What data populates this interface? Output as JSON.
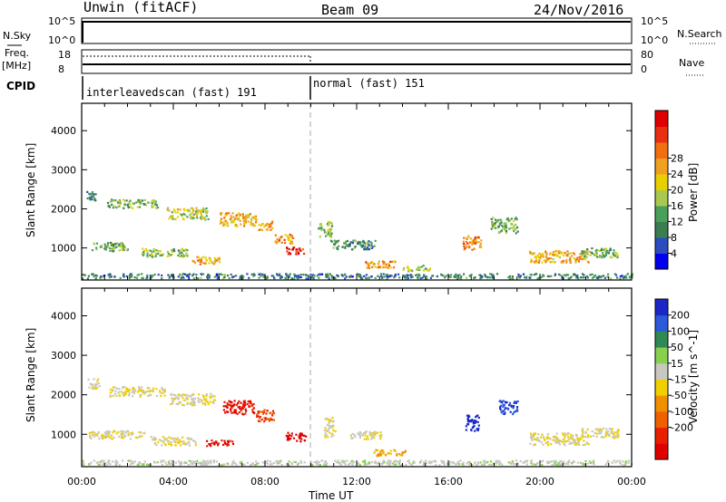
{
  "header": {
    "station": "Unwin (fitACF)",
    "beam": "Beam 09",
    "date": "24/Nov/2016"
  },
  "strip_labels": {
    "nsky": "N.Sky",
    "nsky_ticks": [
      "10^5",
      "10^0"
    ],
    "nsearch": "N.Search",
    "nsearch_ticks": [
      "10^5",
      "10^0"
    ],
    "freq": "Freq.",
    "freq_unit": "[MHz]",
    "freq_ticks": [
      "18",
      "8"
    ],
    "nave": "Nave",
    "nave_ticks": [
      "80",
      "0"
    ],
    "cpid": "CPID",
    "cpid_segments": [
      {
        "label": "interleavedscan (fast) 191",
        "start": "00:00",
        "end": "10:00"
      },
      {
        "label": "normal (fast) 151",
        "start": "10:00",
        "end": "24:00"
      }
    ]
  },
  "axes": {
    "xlabel": "Time UT",
    "xticks": [
      "00:00",
      "04:00",
      "08:00",
      "12:00",
      "16:00",
      "20:00",
      "00:00"
    ],
    "ylabel": "Slant Range [km]",
    "yticks": [
      "1000",
      "2000",
      "3000",
      "4000"
    ]
  },
  "power_scale": {
    "label": "Power [dB]",
    "ticks": [
      "4",
      "8",
      "12",
      "16",
      "20",
      "24",
      "28"
    ],
    "colors": [
      "#0000ee",
      "#2c4cc0",
      "#3a7d50",
      "#4aa05a",
      "#a8c850",
      "#e8d000",
      "#f0a020",
      "#f07010",
      "#e83010",
      "#e00000"
    ]
  },
  "velocity_scale": {
    "label": "Velocity [m s^-1]",
    "ticks": [
      "200",
      "100",
      "50",
      "15",
      "-15",
      "-50",
      "-100",
      "-200"
    ],
    "colors": [
      "#1a28c8",
      "#2c5ad8",
      "#2e8a52",
      "#88d050",
      "#c8c8c0",
      "#f0d000",
      "#f09000",
      "#f06000",
      "#e82000",
      "#e00000"
    ]
  },
  "chart_data": [
    {
      "type": "heatmap",
      "title": "Power",
      "xlabel": "Time UT",
      "ylabel": "Slant Range [km]",
      "xlim": [
        0,
        24
      ],
      "ylim": [
        180,
        4700
      ],
      "colorbar_label": "Power [dB]",
      "clusters": [
        {
          "t": 0.4,
          "r": 2350,
          "w": 0.4,
          "h": 250,
          "v": 8
        },
        {
          "t": 2.2,
          "r": 2150,
          "w": 2.2,
          "h": 220,
          "v": 12
        },
        {
          "t": 4.6,
          "r": 1900,
          "w": 1.8,
          "h": 300,
          "v": 16
        },
        {
          "t": 6.8,
          "r": 1750,
          "w": 1.6,
          "h": 350,
          "v": 20
        },
        {
          "t": 8.0,
          "r": 1600,
          "w": 0.6,
          "h": 250,
          "v": 22
        },
        {
          "t": 8.8,
          "r": 1250,
          "w": 0.8,
          "h": 250,
          "v": 22
        },
        {
          "t": 9.3,
          "r": 950,
          "w": 0.8,
          "h": 180,
          "v": 30
        },
        {
          "t": 1.2,
          "r": 1050,
          "w": 1.6,
          "h": 220,
          "v": 12
        },
        {
          "t": 3.6,
          "r": 900,
          "w": 2.0,
          "h": 220,
          "v": 14
        },
        {
          "t": 5.4,
          "r": 700,
          "w": 1.2,
          "h": 200,
          "v": 20
        },
        {
          "t": 10.6,
          "r": 1500,
          "w": 0.6,
          "h": 400,
          "v": 12
        },
        {
          "t": 11.8,
          "r": 1100,
          "w": 2.0,
          "h": 250,
          "v": 10
        },
        {
          "t": 13.0,
          "r": 600,
          "w": 1.4,
          "h": 180,
          "v": 22
        },
        {
          "t": 14.6,
          "r": 500,
          "w": 1.2,
          "h": 150,
          "v": 14
        },
        {
          "t": 17.0,
          "r": 1150,
          "w": 0.8,
          "h": 350,
          "v": 22
        },
        {
          "t": 18.4,
          "r": 1600,
          "w": 1.2,
          "h": 400,
          "v": 12
        },
        {
          "t": 20.8,
          "r": 800,
          "w": 2.6,
          "h": 300,
          "v": 20
        },
        {
          "t": 22.6,
          "r": 900,
          "w": 1.6,
          "h": 250,
          "v": 12
        },
        {
          "t": 12.0,
          "r": 300,
          "w": 24.0,
          "h": 120,
          "v": 8
        }
      ]
    },
    {
      "type": "heatmap",
      "title": "Velocity",
      "xlabel": "Time UT",
      "ylabel": "Slant Range [km]",
      "xlim": [
        0,
        24
      ],
      "ylim": [
        180,
        4700
      ],
      "colorbar_label": "Velocity [m s^-1]",
      "clusters": [
        {
          "t": 0.5,
          "r": 2300,
          "w": 0.5,
          "h": 250,
          "v": 0
        },
        {
          "t": 2.4,
          "r": 2100,
          "w": 2.4,
          "h": 250,
          "v": 0
        },
        {
          "t": 4.8,
          "r": 1900,
          "w": 2.0,
          "h": 300,
          "v": 0
        },
        {
          "t": 6.8,
          "r": 1700,
          "w": 1.4,
          "h": 350,
          "v": -200
        },
        {
          "t": 8.0,
          "r": 1500,
          "w": 0.8,
          "h": 300,
          "v": -150
        },
        {
          "t": 9.3,
          "r": 950,
          "w": 0.9,
          "h": 220,
          "v": -250
        },
        {
          "t": 1.5,
          "r": 1000,
          "w": 2.4,
          "h": 220,
          "v": 0
        },
        {
          "t": 4.0,
          "r": 850,
          "w": 2.0,
          "h": 220,
          "v": 0
        },
        {
          "t": 6.0,
          "r": 800,
          "w": 1.2,
          "h": 150,
          "v": -200
        },
        {
          "t": 10.8,
          "r": 1200,
          "w": 0.5,
          "h": 500,
          "v": 0
        },
        {
          "t": 12.4,
          "r": 1000,
          "w": 1.4,
          "h": 200,
          "v": 0
        },
        {
          "t": 13.4,
          "r": 550,
          "w": 1.4,
          "h": 150,
          "v": -60
        },
        {
          "t": 17.0,
          "r": 1300,
          "w": 0.6,
          "h": 400,
          "v": 250
        },
        {
          "t": 18.6,
          "r": 1700,
          "w": 0.8,
          "h": 350,
          "v": 200
        },
        {
          "t": 20.8,
          "r": 900,
          "w": 2.6,
          "h": 300,
          "v": 0
        },
        {
          "t": 22.6,
          "r": 1050,
          "w": 1.6,
          "h": 250,
          "v": 0
        },
        {
          "t": 12.0,
          "r": 300,
          "w": 24.0,
          "h": 120,
          "v": 30
        }
      ]
    }
  ]
}
